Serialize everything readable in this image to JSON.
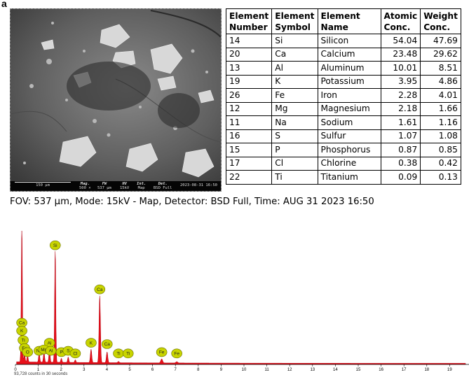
{
  "panel_label": "a",
  "sem": {
    "scale_bar": "150 µm",
    "meta": [
      {
        "label": "Mag.",
        "value": "500 ×"
      },
      {
        "label": "FW",
        "value": "537 µm"
      },
      {
        "label": "HV",
        "value": "15kV"
      },
      {
        "label": "Int.",
        "value": "Map"
      },
      {
        "label": "Det.",
        "value": "BSD Full"
      }
    ],
    "timestamp": "2023-08-31 16:50"
  },
  "table": {
    "headers": [
      [
        "Element",
        "Number"
      ],
      [
        "Element",
        "Symbol"
      ],
      [
        "Element",
        "Name"
      ],
      [
        "Atomic",
        "Conc."
      ],
      [
        "Weight",
        "Conc."
      ]
    ],
    "rows": [
      [
        "14",
        "Si",
        "Silicon",
        "54.04",
        "47.69"
      ],
      [
        "20",
        "Ca",
        "Calcium",
        "23.48",
        "29.62"
      ],
      [
        "13",
        "Al",
        "Aluminum",
        "10.01",
        "8.51"
      ],
      [
        "19",
        "K",
        "Potassium",
        "3.95",
        "4.86"
      ],
      [
        "26",
        "Fe",
        "Iron",
        "2.28",
        "4.01"
      ],
      [
        "12",
        "Mg",
        "Magnesium",
        "2.18",
        "1.66"
      ],
      [
        "11",
        "Na",
        "Sodium",
        "1.61",
        "1.16"
      ],
      [
        "16",
        "S",
        "Sulfur",
        "1.07",
        "1.08"
      ],
      [
        "15",
        "P",
        "Phosphorus",
        "0.87",
        "0.85"
      ],
      [
        "17",
        "Cl",
        "Chlorine",
        "0.38",
        "0.42"
      ],
      [
        "22",
        "Ti",
        "Titanium",
        "0.09",
        "0.13"
      ]
    ]
  },
  "caption": "FOV: 537 µm, Mode: 15kV - Map, Detector: BSD Full, Time: AUG 31 2023 16:50",
  "spectrum": {
    "counts_label": "93,728 counts in 30 seconds",
    "x_ticks": [
      "0",
      "1",
      "2",
      "3",
      "4",
      "5",
      "6",
      "7",
      "8",
      "9",
      "10",
      "11",
      "12",
      "13",
      "14",
      "15",
      "16",
      "17",
      "18",
      "19"
    ],
    "fill_color": "#e8101a",
    "label_color": "#c8d400",
    "peaks": [
      {
        "x": 0.28,
        "y": 1.0,
        "w": 0.05
      },
      {
        "x": 0.4,
        "y": 0.06,
        "w": 0.05
      },
      {
        "x": 0.53,
        "y": 0.05,
        "w": 0.05
      },
      {
        "x": 1.04,
        "y": 0.07,
        "w": 0.05
      },
      {
        "x": 1.25,
        "y": 0.08,
        "w": 0.05
      },
      {
        "x": 1.49,
        "y": 0.1,
        "w": 0.05
      },
      {
        "x": 1.74,
        "y": 0.83,
        "w": 0.05
      },
      {
        "x": 2.01,
        "y": 0.03,
        "w": 0.05
      },
      {
        "x": 2.31,
        "y": 0.04,
        "w": 0.05
      },
      {
        "x": 2.62,
        "y": 0.02,
        "w": 0.05
      },
      {
        "x": 3.31,
        "y": 0.1,
        "w": 0.06
      },
      {
        "x": 3.69,
        "y": 0.5,
        "w": 0.06
      },
      {
        "x": 4.01,
        "y": 0.08,
        "w": 0.06
      },
      {
        "x": 4.51,
        "y": 0.01,
        "w": 0.06
      },
      {
        "x": 6.4,
        "y": 0.03,
        "w": 0.08
      },
      {
        "x": 7.06,
        "y": 0.01,
        "w": 0.08
      }
    ],
    "labels": [
      {
        "text": "Si",
        "x": 1.74,
        "y": 0.85
      },
      {
        "text": "Ca",
        "x": 3.69,
        "y": 0.52
      },
      {
        "text": "Ca",
        "x": 0.28,
        "y": 0.27
      },
      {
        "text": "K",
        "x": 0.28,
        "y": 0.21
      },
      {
        "text": "Ti",
        "x": 0.34,
        "y": 0.14
      },
      {
        "text": "Fe",
        "x": 0.4,
        "y": 0.08
      },
      {
        "text": "O",
        "x": 0.53,
        "y": 0.05
      },
      {
        "text": "Na",
        "x": 1.04,
        "y": 0.06
      },
      {
        "text": "Al",
        "x": 1.49,
        "y": 0.12
      },
      {
        "text": "Mg",
        "x": 1.25,
        "y": 0.07
      },
      {
        "text": "Al",
        "x": 1.55,
        "y": 0.06
      },
      {
        "text": "P",
        "x": 2.01,
        "y": 0.05
      },
      {
        "text": "S",
        "x": 2.31,
        "y": 0.06
      },
      {
        "text": "Cl",
        "x": 2.62,
        "y": 0.04
      },
      {
        "text": "K",
        "x": 3.31,
        "y": 0.12
      },
      {
        "text": "Ca",
        "x": 4.01,
        "y": 0.11
      },
      {
        "text": "Ti",
        "x": 4.51,
        "y": 0.04
      },
      {
        "text": "Ti",
        "x": 4.93,
        "y": 0.04
      },
      {
        "text": "Fe",
        "x": 6.4,
        "y": 0.05
      },
      {
        "text": "Fe",
        "x": 7.06,
        "y": 0.04
      }
    ]
  }
}
